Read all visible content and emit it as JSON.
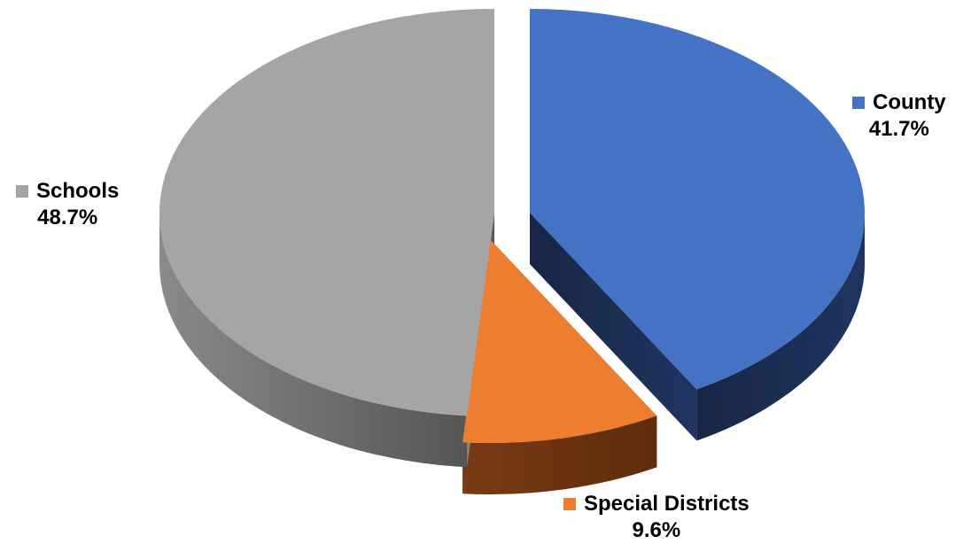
{
  "chart_data": {
    "type": "pie",
    "title": "",
    "slices": [
      {
        "label": "County",
        "value": 41.7,
        "value_label": "41.7%",
        "color": "#4472C4",
        "side_color": "#1C2D50"
      },
      {
        "label": "Special Districts",
        "value": 9.6,
        "value_label": "9.6%",
        "color": "#ED7D31",
        "side_color": "#6E3615"
      },
      {
        "label": "Schools",
        "value": 48.7,
        "value_label": "48.7%",
        "color": "#A5A5A5",
        "side_color": "#6A6A6A"
      }
    ],
    "start_angle_deg": 0,
    "exploded": true,
    "style": "3d"
  }
}
